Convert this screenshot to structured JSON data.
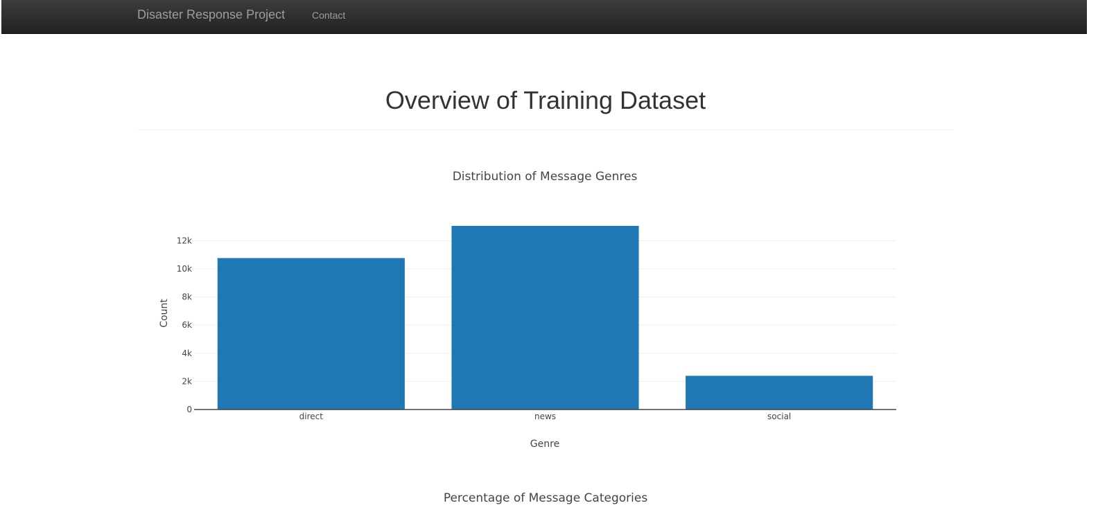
{
  "navbar": {
    "brand": "Disaster Response Project",
    "links": [
      "Contact"
    ]
  },
  "page": {
    "title": "Overview of Training Dataset"
  },
  "chart_data": [
    {
      "type": "bar",
      "title": "Distribution of Message Genres",
      "xlabel": "Genre",
      "ylabel": "Count",
      "categories": [
        "direct",
        "news",
        "social"
      ],
      "values": [
        10766,
        13054,
        2396
      ],
      "ylim": [
        0,
        13054
      ],
      "yticks": [
        0,
        2000,
        4000,
        6000,
        8000,
        10000,
        12000
      ],
      "ytick_labels": [
        "0",
        "2k",
        "4k",
        "6k",
        "8k",
        "10k",
        "12k"
      ],
      "grid": true,
      "bar_color": "#1f77b4"
    },
    {
      "type": "bar",
      "title": "Percentage of Message Categories"
    }
  ]
}
